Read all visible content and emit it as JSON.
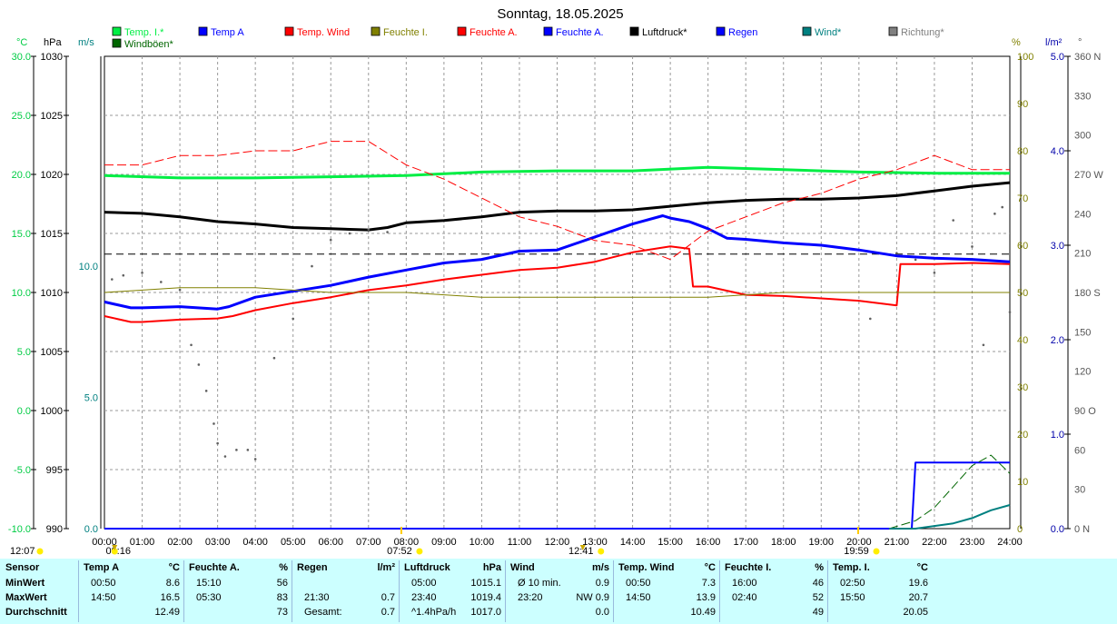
{
  "chart_data": {
    "type": "line",
    "title": "Sonntag, 18.05.2025",
    "legend": [
      {
        "label": "Temp. I.*",
        "color": "#00ee44"
      },
      {
        "label": "Temp A",
        "color": "#0000ff"
      },
      {
        "label": "Temp. Wind",
        "color": "#ff0000"
      },
      {
        "label": "Feuchte I.",
        "color": "#808000"
      },
      {
        "label": "Feuchte A.",
        "color": "#ff0000"
      },
      {
        "label": "Feuchte A.",
        "color": "#0000ff"
      },
      {
        "label": "Luftdruck*",
        "color": "#000000"
      },
      {
        "label": "Regen",
        "color": "#0000ff"
      },
      {
        "label": "Wind*",
        "color": "#008080"
      },
      {
        "label": "Richtung*",
        "color": "#808080"
      },
      {
        "label": "Windböen*",
        "color": "#006600"
      }
    ],
    "axes": {
      "temp": {
        "unit": "°C",
        "color": "#00cc44",
        "ticks": [
          "30.0",
          "25.0",
          "20.0",
          "15.0",
          "10.0",
          "5.0",
          "0.0",
          "-5.0",
          "-10.0"
        ],
        "range": [
          -10,
          30
        ]
      },
      "pressure": {
        "unit": "hPa",
        "ticks": [
          "1030",
          "1025",
          "1020",
          "1015",
          "1010",
          "1005",
          "1000",
          "995",
          "990"
        ],
        "range": [
          990,
          1030
        ]
      },
      "wind": {
        "unit": "m/s",
        "color": "#008080",
        "ticks": [
          "10.0",
          "5.0",
          "0.0"
        ],
        "range": [
          0,
          18
        ]
      },
      "humidity": {
        "unit": "%",
        "color": "#808000",
        "ticks": [
          "100",
          "90",
          "80",
          "70",
          "60",
          "50",
          "40",
          "30",
          "20",
          "10",
          "0"
        ],
        "range": [
          0,
          100
        ]
      },
      "rain": {
        "unit": "l/m²",
        "color": "#0000aa",
        "ticks": [
          "5.0",
          "4.0",
          "3.0",
          "2.0",
          "1.0",
          "0.0"
        ],
        "range": [
          0,
          5
        ]
      },
      "direction": {
        "unit": "°",
        "ticks": [
          "360 N",
          "330",
          "300",
          "270 W",
          "240",
          "210",
          "180 S",
          "150",
          "120",
          "90 O",
          "60",
          "30",
          "0 N"
        ],
        "range": [
          0,
          360
        ]
      }
    },
    "x_ticks": [
      "00:00",
      "01:00",
      "02:00",
      "03:00",
      "04:00",
      "05:00",
      "06:00",
      "07:00",
      "08:00",
      "09:00",
      "10:00",
      "11:00",
      "12:00",
      "13:00",
      "14:00",
      "15:00",
      "16:00",
      "17:00",
      "18:00",
      "19:00",
      "20:00",
      "21:00",
      "22:00",
      "23:00",
      "24:00"
    ],
    "x_range_hours": [
      0,
      24
    ],
    "reference_line_pressure": 1013.25,
    "markers": [
      {
        "label": "12:07",
        "hour": 0
      },
      {
        "label": "00:16",
        "hour": 0.27
      },
      {
        "label": "07:52",
        "hour": 7.87
      },
      {
        "label": "12:41",
        "hour": 12.68
      },
      {
        "label": "19:59",
        "hour": 19.98
      }
    ],
    "series": [
      {
        "name": "Temp. I.*",
        "axis": "temp",
        "color": "#00ee44",
        "style": "solid",
        "width": 3,
        "points": [
          [
            0,
            19.9
          ],
          [
            2,
            19.7
          ],
          [
            4,
            19.7
          ],
          [
            6,
            19.8
          ],
          [
            8,
            19.9
          ],
          [
            10,
            20.2
          ],
          [
            12,
            20.3
          ],
          [
            14,
            20.3
          ],
          [
            16,
            20.6
          ],
          [
            18,
            20.4
          ],
          [
            20,
            20.2
          ],
          [
            22,
            20.1
          ],
          [
            24,
            20.1
          ]
        ]
      },
      {
        "name": "Luftdruck*",
        "axis": "pressure",
        "color": "#000000",
        "style": "solid",
        "width": 3,
        "points": [
          [
            0,
            1016.8
          ],
          [
            1,
            1016.7
          ],
          [
            2,
            1016.4
          ],
          [
            3,
            1016.0
          ],
          [
            4,
            1015.8
          ],
          [
            5,
            1015.5
          ],
          [
            6,
            1015.4
          ],
          [
            7,
            1015.3
          ],
          [
            7.5,
            1015.5
          ],
          [
            8,
            1015.9
          ],
          [
            9,
            1016.1
          ],
          [
            10,
            1016.4
          ],
          [
            11,
            1016.8
          ],
          [
            12,
            1016.9
          ],
          [
            13,
            1016.9
          ],
          [
            14,
            1017.0
          ],
          [
            15,
            1017.3
          ],
          [
            16,
            1017.6
          ],
          [
            17,
            1017.8
          ],
          [
            18,
            1017.9
          ],
          [
            19,
            1017.9
          ],
          [
            20,
            1018.0
          ],
          [
            21,
            1018.2
          ],
          [
            22,
            1018.6
          ],
          [
            23,
            1019.0
          ],
          [
            24,
            1019.3
          ]
        ]
      },
      {
        "name": "Temp A",
        "axis": "temp",
        "color": "#0000ff",
        "style": "solid",
        "width": 3,
        "points": [
          [
            0,
            9.2
          ],
          [
            0.7,
            8.7
          ],
          [
            1,
            8.7
          ],
          [
            2,
            8.8
          ],
          [
            3,
            8.6
          ],
          [
            3.3,
            8.8
          ],
          [
            4,
            9.6
          ],
          [
            5,
            10.1
          ],
          [
            6,
            10.6
          ],
          [
            7,
            11.3
          ],
          [
            8,
            11.9
          ],
          [
            9,
            12.5
          ],
          [
            10,
            12.8
          ],
          [
            11,
            13.5
          ],
          [
            12,
            13.6
          ],
          [
            13,
            14.7
          ],
          [
            14,
            15.8
          ],
          [
            14.8,
            16.5
          ],
          [
            15,
            16.3
          ],
          [
            15.5,
            16.0
          ],
          [
            16,
            15.4
          ],
          [
            16.5,
            14.6
          ],
          [
            17,
            14.5
          ],
          [
            18,
            14.2
          ],
          [
            19,
            14.0
          ],
          [
            20,
            13.6
          ],
          [
            21,
            13.1
          ],
          [
            22,
            12.9
          ],
          [
            23,
            12.8
          ],
          [
            24,
            12.6
          ]
        ]
      },
      {
        "name": "Temp. Wind",
        "axis": "temp",
        "color": "#ff0000",
        "style": "solid",
        "width": 2,
        "points": [
          [
            0,
            8.0
          ],
          [
            0.7,
            7.5
          ],
          [
            1,
            7.5
          ],
          [
            2,
            7.7
          ],
          [
            3,
            7.8
          ],
          [
            3.4,
            8.0
          ],
          [
            4,
            8.5
          ],
          [
            5,
            9.1
          ],
          [
            6,
            9.6
          ],
          [
            7,
            10.2
          ],
          [
            8,
            10.6
          ],
          [
            9,
            11.1
          ],
          [
            10,
            11.5
          ],
          [
            11,
            11.9
          ],
          [
            12,
            12.1
          ],
          [
            13,
            12.6
          ],
          [
            14,
            13.4
          ],
          [
            15,
            13.9
          ],
          [
            15.5,
            13.7
          ],
          [
            15.6,
            10.5
          ],
          [
            16,
            10.5
          ],
          [
            17,
            9.8
          ],
          [
            18,
            9.7
          ],
          [
            19,
            9.5
          ],
          [
            20,
            9.3
          ],
          [
            21,
            8.9
          ],
          [
            21.1,
            12.4
          ],
          [
            22,
            12.4
          ],
          [
            23,
            12.5
          ],
          [
            24,
            12.4
          ]
        ]
      },
      {
        "name": "Feuchte A.",
        "axis": "humidity",
        "color": "#ff0000",
        "style": "dashed",
        "width": 1,
        "points": [
          [
            0,
            77
          ],
          [
            1,
            77
          ],
          [
            2,
            79
          ],
          [
            3,
            79
          ],
          [
            4,
            80
          ],
          [
            5,
            80
          ],
          [
            6,
            82
          ],
          [
            7,
            82
          ],
          [
            8,
            77
          ],
          [
            9,
            74
          ],
          [
            10,
            70
          ],
          [
            11,
            66
          ],
          [
            12,
            64
          ],
          [
            13,
            61
          ],
          [
            14,
            60
          ],
          [
            15,
            57
          ],
          [
            16,
            63
          ],
          [
            17,
            66
          ],
          [
            18,
            69
          ],
          [
            19,
            71
          ],
          [
            20,
            74
          ],
          [
            21,
            76
          ],
          [
            22,
            79
          ],
          [
            23,
            76
          ],
          [
            24,
            76
          ]
        ]
      },
      {
        "name": "Feuchte I.",
        "axis": "humidity",
        "color": "#808000",
        "style": "solid",
        "width": 1,
        "points": [
          [
            0,
            50
          ],
          [
            2,
            51
          ],
          [
            4,
            51
          ],
          [
            6,
            50
          ],
          [
            8,
            50
          ],
          [
            10,
            49
          ],
          [
            12,
            49
          ],
          [
            14,
            49
          ],
          [
            16,
            49
          ],
          [
            18,
            50
          ],
          [
            20,
            50
          ],
          [
            22,
            50
          ],
          [
            24,
            50
          ]
        ]
      },
      {
        "name": "Regen",
        "axis": "rain",
        "color": "#0000ff",
        "style": "solid",
        "width": 2,
        "points": [
          [
            0,
            0
          ],
          [
            21.4,
            0
          ],
          [
            21.5,
            0.7
          ],
          [
            24,
            0.7
          ]
        ]
      },
      {
        "name": "Windböen*",
        "axis": "wind",
        "color": "#006600",
        "style": "dashed",
        "width": 1,
        "points": [
          [
            20.8,
            0
          ],
          [
            21.5,
            0.3
          ],
          [
            22,
            0.8
          ],
          [
            22.5,
            1.6
          ],
          [
            23,
            2.4
          ],
          [
            23.5,
            2.8
          ],
          [
            24,
            2.1
          ]
        ]
      },
      {
        "name": "Wind*",
        "axis": "wind",
        "color": "#008080",
        "style": "solid",
        "width": 2,
        "points": [
          [
            20.8,
            0
          ],
          [
            21.5,
            0
          ],
          [
            22,
            0.1
          ],
          [
            22.5,
            0.2
          ],
          [
            23,
            0.4
          ],
          [
            23.5,
            0.7
          ],
          [
            24,
            0.9
          ]
        ]
      },
      {
        "name": "Richtung*",
        "axis": "direction",
        "color": "#606060",
        "style": "dots",
        "width": 2,
        "points": [
          [
            0.2,
            190
          ],
          [
            0.5,
            193
          ],
          [
            1,
            195
          ],
          [
            1.5,
            188
          ],
          [
            2,
            182
          ],
          [
            2.3,
            140
          ],
          [
            2.5,
            125
          ],
          [
            2.7,
            105
          ],
          [
            2.9,
            80
          ],
          [
            3.0,
            65
          ],
          [
            3.2,
            55
          ],
          [
            3.5,
            60
          ],
          [
            3.8,
            60
          ],
          [
            4,
            53
          ],
          [
            4.5,
            130
          ],
          [
            5,
            160
          ],
          [
            5.5,
            200
          ],
          [
            6,
            220
          ],
          [
            6.5,
            225
          ],
          [
            7,
            228
          ],
          [
            7.5,
            226
          ],
          [
            20.3,
            160
          ],
          [
            21,
            210
          ],
          [
            21.5,
            205
          ],
          [
            22,
            195
          ],
          [
            22.5,
            235
          ],
          [
            23,
            215
          ],
          [
            23.3,
            140
          ],
          [
            23.6,
            240
          ],
          [
            23.8,
            245
          ],
          [
            24,
            165
          ]
        ]
      }
    ]
  },
  "stats": {
    "columns": [
      {
        "header": "Sensor",
        "unit": "",
        "rows": [
          {
            "time": "MinWert",
            "value": ""
          },
          {
            "time": "MaxWert",
            "value": ""
          },
          {
            "time": "Durchschnitt",
            "value": ""
          }
        ]
      },
      {
        "header": "Temp A",
        "unit": "°C",
        "rows": [
          {
            "time": "00:50",
            "value": "8.6"
          },
          {
            "time": "14:50",
            "value": "16.5"
          },
          {
            "time": "",
            "value": "12.49"
          }
        ]
      },
      {
        "header": "Feuchte A.",
        "unit": "%",
        "rows": [
          {
            "time": "15:10",
            "value": "56"
          },
          {
            "time": "05:30",
            "value": "83"
          },
          {
            "time": "",
            "value": "73"
          }
        ]
      },
      {
        "header": "Regen",
        "unit": "l/m²",
        "rows": [
          {
            "time": "",
            "value": ""
          },
          {
            "time": "21:30",
            "value": "0.7"
          },
          {
            "time": "Gesamt:",
            "value": "0.7"
          }
        ]
      },
      {
        "header": "Luftdruck",
        "unit": "hPa",
        "rows": [
          {
            "time": "05:00",
            "value": "1015.1"
          },
          {
            "time": "23:40",
            "value": "1019.4"
          },
          {
            "time": "^1.4hPa/h",
            "value": "1017.0"
          }
        ]
      },
      {
        "header": "Wind",
        "unit": "m/s",
        "rows": [
          {
            "time": "Ø 10 min.",
            "value": "0.9"
          },
          {
            "time": "23:20",
            "value": "NW 0.9"
          },
          {
            "time": "",
            "value": "0.0"
          }
        ]
      },
      {
        "header": "Temp. Wind",
        "unit": "°C",
        "rows": [
          {
            "time": "00:50",
            "value": "7.3"
          },
          {
            "time": "14:50",
            "value": "13.9"
          },
          {
            "time": "",
            "value": "10.49"
          }
        ]
      },
      {
        "header": "Feuchte I.",
        "unit": "%",
        "rows": [
          {
            "time": "16:00",
            "value": "46"
          },
          {
            "time": "02:40",
            "value": "52"
          },
          {
            "time": "",
            "value": "49"
          }
        ]
      },
      {
        "header": "Temp. I.",
        "unit": "°C",
        "rows": [
          {
            "time": "02:50",
            "value": "19.6"
          },
          {
            "time": "15:50",
            "value": "20.7"
          },
          {
            "time": "",
            "value": "20.05"
          }
        ]
      }
    ]
  }
}
